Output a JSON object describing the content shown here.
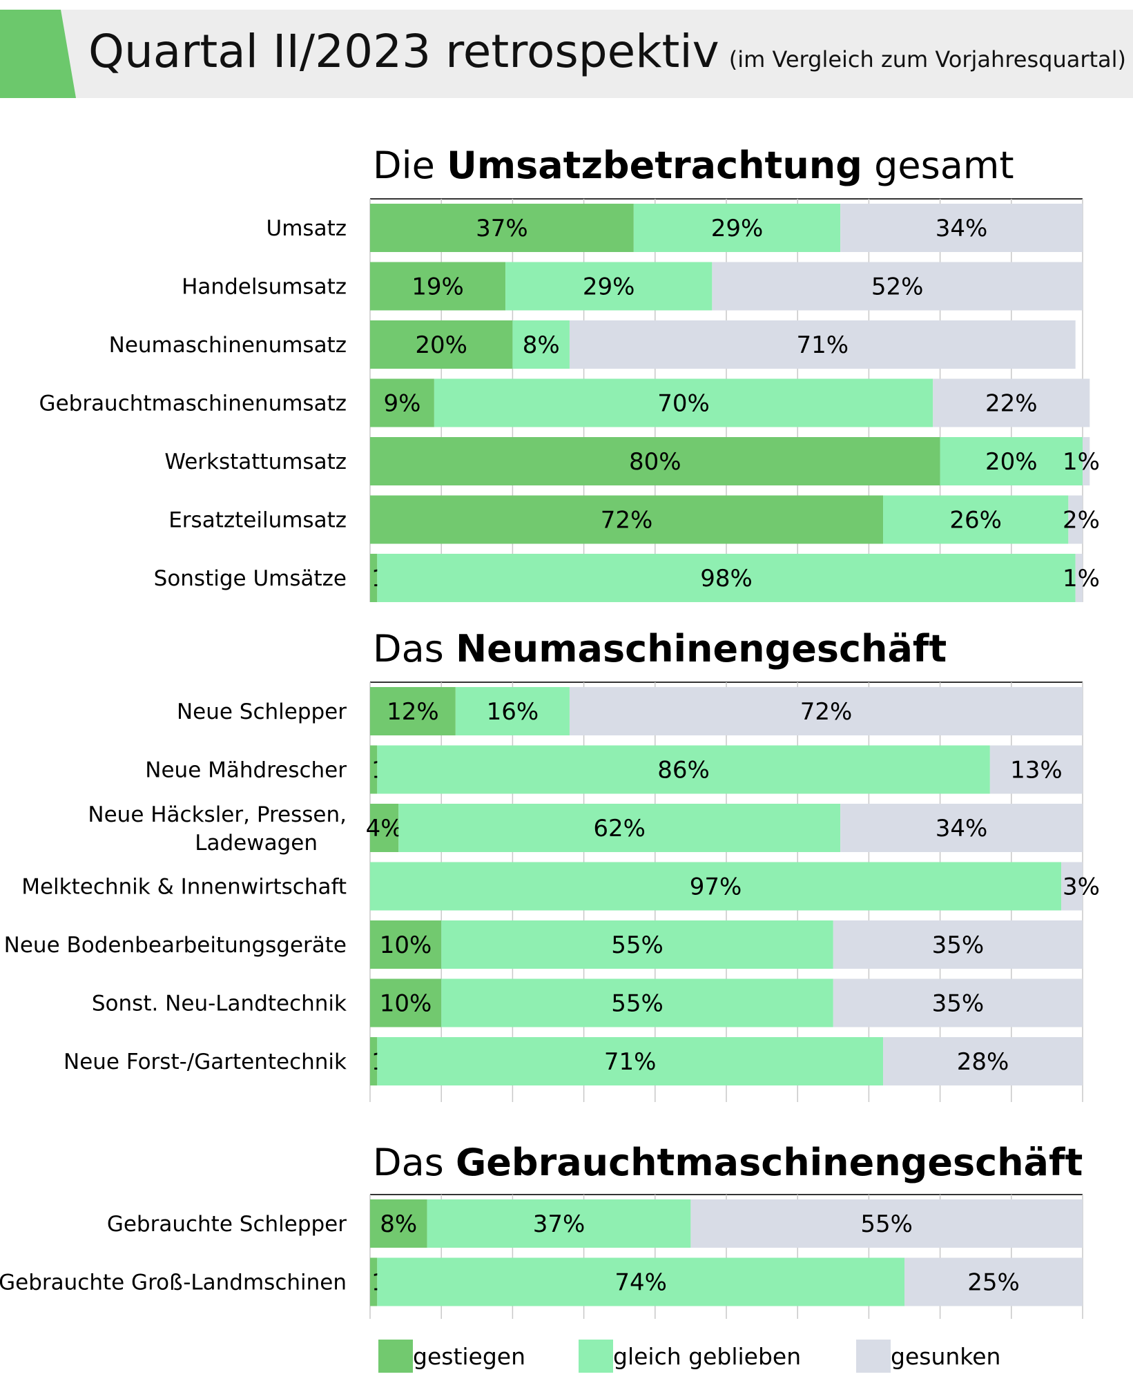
{
  "header": {
    "title": "Quartal II/2023 retrospektiv",
    "subtitle": "(im Vergleich zum Vorjahresquartal)",
    "accent_color": "#6cc86c",
    "background_color": "#ededed"
  },
  "colors": {
    "gestiegen": "#72c96f",
    "gleich_geblieben": "#8fefb1",
    "gesunken": "#d8dce6"
  },
  "chart_data": [
    {
      "type": "bar",
      "orientation": "horizontal",
      "stacked": true,
      "title_prefix": "Die",
      "title_bold": "Umsatzbetrachtung",
      "title_suffix": "gesamt",
      "categories": [
        "Umsatz",
        "Handelsumsatz",
        "Neumaschinenumsatz",
        "Gebrauchtmaschinenumsatz",
        "Werkstattumsatz",
        "Ersatzteilumsatz",
        "Sonstige Umsätze"
      ],
      "series": [
        {
          "name": "gestiegen",
          "values": [
            37,
            19,
            20,
            9,
            80,
            72,
            1
          ]
        },
        {
          "name": "gleich geblieben",
          "values": [
            29,
            29,
            8,
            70,
            20,
            26,
            98
          ]
        },
        {
          "name": "gesunken",
          "values": [
            34,
            52,
            71,
            22,
            1,
            2,
            1
          ]
        }
      ],
      "xlim": [
        0,
        100
      ],
      "unit": "%",
      "grid": true
    },
    {
      "type": "bar",
      "orientation": "horizontal",
      "stacked": true,
      "title_prefix": "Das",
      "title_bold": "Neumaschinengeschäft",
      "title_suffix": "",
      "categories": [
        "Neue Schlepper",
        "Neue Mähdrescher",
        "Neue Häcksler, Pressen, Ladewagen",
        "Melktechnik & Innenwirtschaft",
        "Neue Bodenbearbeitungsgeräte",
        "Sonst. Neu-Landtechnik",
        "Neue Forst-/Gartentechnik"
      ],
      "series": [
        {
          "name": "gestiegen",
          "values": [
            12,
            1,
            4,
            null,
            10,
            10,
            1
          ]
        },
        {
          "name": "gleich geblieben",
          "values": [
            16,
            86,
            62,
            97,
            55,
            55,
            71
          ]
        },
        {
          "name": "gesunken",
          "values": [
            72,
            13,
            34,
            3,
            35,
            35,
            28
          ]
        }
      ],
      "xlim": [
        0,
        100
      ],
      "unit": "%",
      "grid": true
    },
    {
      "type": "bar",
      "orientation": "horizontal",
      "stacked": true,
      "title_prefix": "Das",
      "title_bold": "Gebrauchtmaschinengeschäft",
      "title_suffix": "",
      "categories": [
        "Gebrauchte Schlepper",
        "Gebrauchte Groß-Landmschinen"
      ],
      "series": [
        {
          "name": "gestiegen",
          "values": [
            8,
            1
          ]
        },
        {
          "name": "gleich geblieben",
          "values": [
            37,
            74
          ]
        },
        {
          "name": "gesunken",
          "values": [
            55,
            25
          ]
        }
      ],
      "xlim": [
        0,
        100
      ],
      "unit": "%",
      "grid": true
    }
  ],
  "legend": {
    "position": "bottom",
    "items": [
      {
        "label": "gestiegen",
        "key": "gestiegen"
      },
      {
        "label": "gleich geblieben",
        "key": "gleich_geblieben"
      },
      {
        "label": "gesunken",
        "key": "gesunken"
      }
    ]
  }
}
